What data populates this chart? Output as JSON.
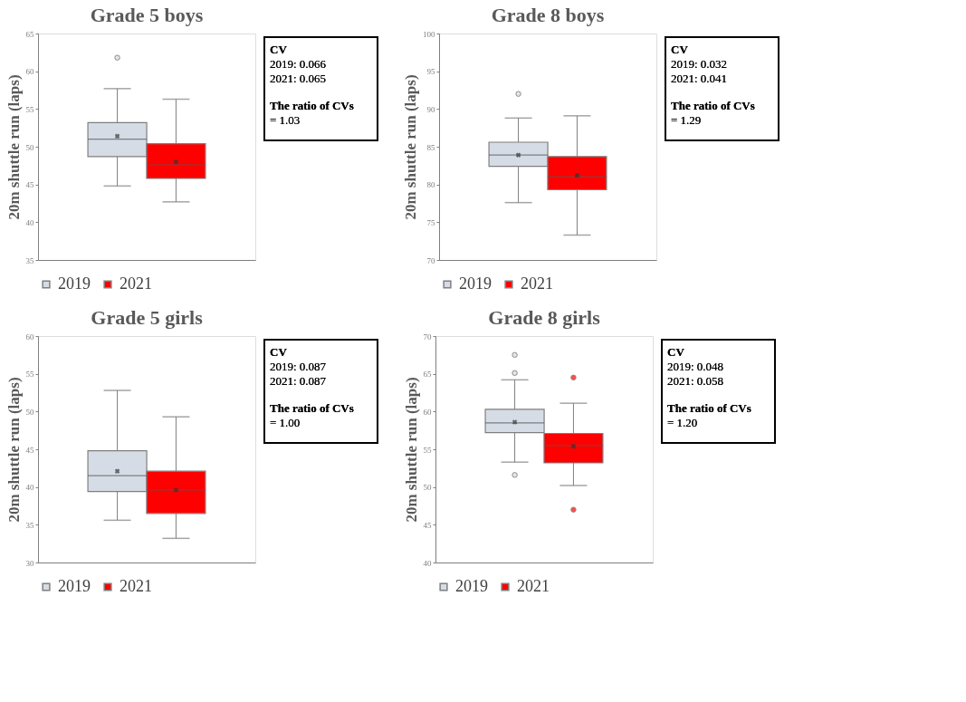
{
  "chart_data": [
    {
      "type": "box",
      "title": "Grade 5 boys",
      "ylabel": "20m shuttle run (laps)",
      "categories": [
        null
      ],
      "ylim": [
        35,
        65
      ],
      "yticks": [
        35,
        40,
        45,
        50,
        55,
        60,
        65
      ],
      "legend": "bottom",
      "annotations": [
        "CV",
        "2019: 0.066",
        "2021: 0.065",
        "The ratio of CVs",
        "= 1.03"
      ],
      "series": [
        {
          "name": "2019",
          "color": "#d6dce5",
          "boxes": [
            {
              "low": 44.8,
              "q1": 48.7,
              "median": 51.0,
              "q3": 53.2,
              "high": 57.7,
              "mean": 51.4,
              "outliers": [
                61.8
              ]
            }
          ]
        },
        {
          "name": "2021",
          "color": "#ff0000",
          "boxes": [
            {
              "low": 42.7,
              "q1": 45.8,
              "median": 47.6,
              "q3": 50.4,
              "high": 56.3,
              "mean": 48.0
            }
          ]
        }
      ]
    },
    {
      "type": "box",
      "title": "Grade 8 boys",
      "ylabel": "20m shuttle run (laps)",
      "categories": [
        null
      ],
      "ylim": [
        70,
        100
      ],
      "yticks": [
        70,
        75,
        80,
        85,
        90,
        95,
        100
      ],
      "legend": "bottom",
      "annotations": [
        "CV",
        "2019: 0.032",
        "2021: 0.041",
        "The ratio of CVs",
        "= 1.29"
      ],
      "series": [
        {
          "name": "2019",
          "color": "#d6dce5",
          "boxes": [
            {
              "low": 77.6,
              "q1": 82.4,
              "median": 83.9,
              "q3": 85.6,
              "high": 88.8,
              "mean": 83.9,
              "outliers": [
                92.0
              ]
            }
          ]
        },
        {
          "name": "2021",
          "color": "#ff0000",
          "boxes": [
            {
              "low": 73.3,
              "q1": 79.3,
              "median": 81.0,
              "q3": 83.7,
              "high": 89.1,
              "mean": 81.2
            }
          ]
        }
      ]
    },
    {
      "type": "box",
      "title": "Grade 5 girls",
      "ylabel": "20m shuttle run (laps)",
      "categories": [
        null
      ],
      "ylim": [
        30,
        60
      ],
      "yticks": [
        30,
        35,
        40,
        45,
        50,
        55,
        60
      ],
      "legend": "bottom",
      "annotations": [
        "CV",
        "2019: 0.087",
        "2021: 0.087",
        "The ratio of CVs",
        "= 1.00"
      ],
      "series": [
        {
          "name": "2019",
          "color": "#d6dce5",
          "boxes": [
            {
              "low": 35.6,
              "q1": 39.4,
              "median": 41.5,
              "q3": 44.8,
              "high": 52.8,
              "mean": 42.1
            }
          ]
        },
        {
          "name": "2021",
          "color": "#ff0000",
          "boxes": [
            {
              "low": 33.2,
              "q1": 36.5,
              "median": 39.6,
              "q3": 42.1,
              "high": 49.3,
              "mean": 39.6
            }
          ]
        }
      ]
    },
    {
      "type": "box",
      "title": "Grade 8 girls",
      "ylabel": "20m shuttle run (laps)",
      "categories": [
        null
      ],
      "ylim": [
        40,
        70
      ],
      "yticks": [
        40,
        45,
        50,
        55,
        60,
        65,
        70
      ],
      "legend": "bottom",
      "annotations": [
        "CV",
        "2019: 0.048",
        "2021: 0.058",
        "The ratio of CVs",
        "= 1.20"
      ],
      "series": [
        {
          "name": "2019",
          "color": "#d6dce5",
          "boxes": [
            {
              "low": 53.3,
              "q1": 57.2,
              "median": 58.5,
              "q3": 60.3,
              "high": 64.2,
              "mean": 58.6,
              "outliers": [
                65.1,
                67.5,
                51.6
              ]
            }
          ]
        },
        {
          "name": "2021",
          "color": "#ff0000",
          "boxes": [
            {
              "low": 50.2,
              "q1": 53.2,
              "median": 55.5,
              "q3": 57.1,
              "high": 61.1,
              "mean": 55.4,
              "outliers": [
                64.5,
                47.0
              ]
            }
          ]
        }
      ]
    }
  ]
}
